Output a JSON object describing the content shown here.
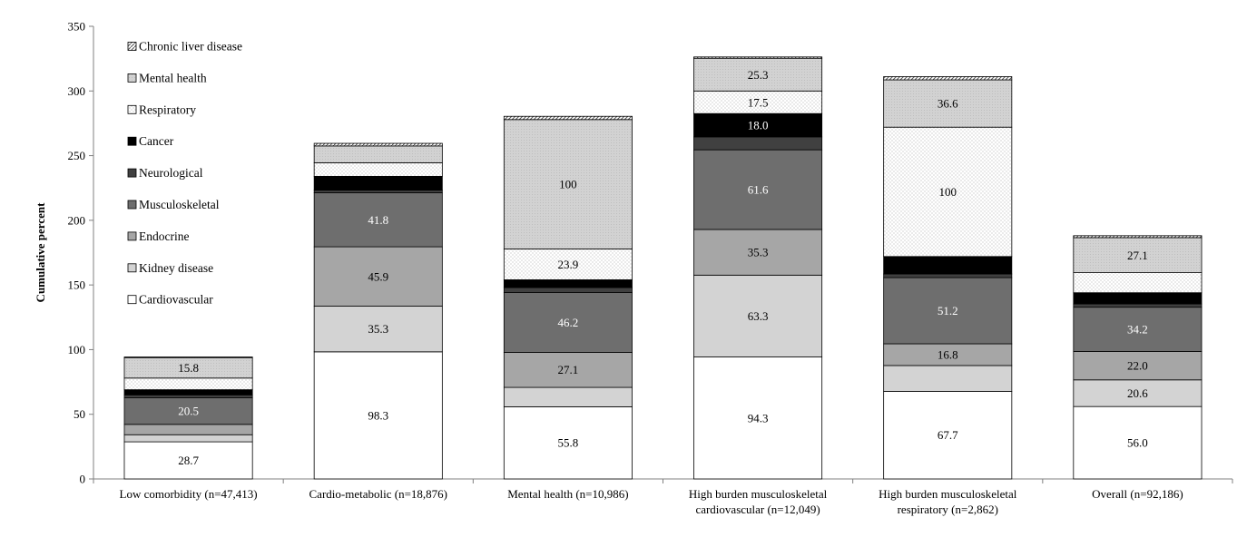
{
  "chart_data": {
    "type": "bar",
    "stacked": true,
    "ylabel": "Cumulative percent",
    "xlabel": "",
    "ylim": [
      0,
      350
    ],
    "yticks": [
      0,
      50,
      100,
      150,
      200,
      250,
      300,
      350
    ],
    "grid": false,
    "legend_position": "top-left",
    "categories": [
      [
        "Low comorbidity (n=47,413)"
      ],
      [
        "Cardio-metabolic (n=18,876)"
      ],
      [
        "Mental health (n=10,986)"
      ],
      [
        "High burden musculoskeletal",
        "cardiovascular (n=12,049)"
      ],
      [
        "High burden musculoskeletal",
        "respiratory (n=2,862)"
      ],
      [
        "Overall (n=92,186)"
      ]
    ],
    "series": [
      {
        "name": "Cardiovascular",
        "pattern": "white",
        "values": [
          28.7,
          98.3,
          55.8,
          94.3,
          67.7,
          56.0
        ],
        "labels": [
          "28.7",
          "98.3",
          "55.8",
          "94.3",
          "67.7",
          "56.0"
        ]
      },
      {
        "name": "Kidney disease",
        "pattern": "light-gray",
        "values": [
          5.5,
          35.3,
          15.0,
          63.3,
          20.0,
          20.6
        ],
        "labels": [
          "",
          "35.3",
          "",
          "63.3",
          "",
          "20.6"
        ]
      },
      {
        "name": "Endocrine",
        "pattern": "mid-gray",
        "values": [
          8.0,
          45.9,
          27.1,
          35.3,
          16.8,
          22.0
        ],
        "labels": [
          "",
          "45.9",
          "27.1",
          "35.3",
          "16.8",
          "22.0"
        ]
      },
      {
        "name": "Musculoskeletal",
        "pattern": "dark-gray",
        "values": [
          20.5,
          41.8,
          46.2,
          61.6,
          51.2,
          34.2
        ],
        "labels": [
          "20.5",
          "41.8",
          "46.2",
          "61.6",
          "51.2",
          "34.2"
        ]
      },
      {
        "name": "Neurological",
        "pattern": "darker-gray",
        "values": [
          2.3,
          2.0,
          3.9,
          10.0,
          2.8,
          2.5
        ],
        "labels": [
          "",
          "",
          "",
          "",
          "",
          ""
        ]
      },
      {
        "name": "Cancer",
        "pattern": "black",
        "values": [
          4.0,
          10.7,
          6.0,
          18.0,
          13.5,
          8.7
        ],
        "labels": [
          "",
          "",
          "",
          "18.0",
          "",
          ""
        ]
      },
      {
        "name": "Respiratory",
        "pattern": "dots",
        "values": [
          9.0,
          10.5,
          23.9,
          17.5,
          100,
          15.5
        ],
        "labels": [
          "",
          "",
          "23.9",
          "17.5",
          "100",
          ""
        ]
      },
      {
        "name": "Mental health",
        "pattern": "light-gray-dots",
        "values": [
          15.8,
          13.0,
          100,
          25.3,
          36.6,
          27.1
        ],
        "labels": [
          "15.8",
          "",
          "100",
          "25.3",
          "36.6",
          "27.1"
        ]
      },
      {
        "name": "Chronic liver disease",
        "pattern": "hatch",
        "values": [
          0.5,
          2.0,
          2.5,
          1.0,
          2.5,
          1.5
        ],
        "labels": [
          "",
          "",
          "",
          "",
          "",
          ""
        ]
      }
    ],
    "legend_order": [
      "Chronic liver disease",
      "Mental health",
      "Respiratory",
      "Cancer",
      "Neurological",
      "Musculoskeletal",
      "Endocrine",
      "Kidney disease",
      "Cardiovascular"
    ]
  }
}
